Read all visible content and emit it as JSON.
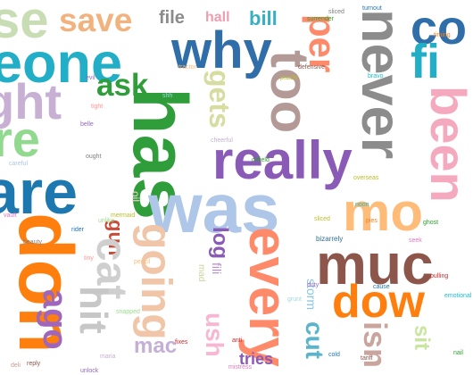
{
  "words": [
    {
      "text": "se",
      "color": "#c8ddb3"
    },
    {
      "text": "save",
      "color": "#f2b27e"
    },
    {
      "text": "why",
      "color": "#2f6ea8"
    },
    {
      "text": "file",
      "color": "#8b8b8b"
    },
    {
      "text": "hall",
      "color": "#ef9db0"
    },
    {
      "text": "bill",
      "color": "#38b0c1"
    },
    {
      "text": "co",
      "color": "#2f6ea8"
    },
    {
      "text": "eone",
      "color": "#22aec7"
    },
    {
      "text": "fi",
      "color": "#22aec7"
    },
    {
      "text": "never",
      "color": "#8c8c8c"
    },
    {
      "text": "per",
      "color": "#ff8a6a"
    },
    {
      "text": "ask",
      "color": "#2f9d3a"
    },
    {
      "text": "ght",
      "color": "#c7b0d3"
    },
    {
      "text": "too",
      "color": "#b39a97"
    },
    {
      "text": "gets",
      "color": "#d7dca0"
    },
    {
      "text": "has",
      "color": "#2f9d3a"
    },
    {
      "text": "been",
      "color": "#f4a9bf"
    },
    {
      "text": "re",
      "color": "#91d98f"
    },
    {
      "text": "really",
      "color": "#8a5ab7"
    },
    {
      "text": "are",
      "color": "#1d78b0"
    },
    {
      "text": "was",
      "color": "#aec7e8"
    },
    {
      "text": "mo",
      "color": "#ffbb78"
    },
    {
      "text": "don",
      "color": "#ff7f0e"
    },
    {
      "text": "gun",
      "color": "#c94c3b"
    },
    {
      "text": "cat",
      "color": "#cfcfcf"
    },
    {
      "text": "going",
      "color": "#f0c5a8"
    },
    {
      "text": "log",
      "color": "#8a5ab7"
    },
    {
      "text": "every",
      "color": "#ff8a6a"
    },
    {
      "text": "muc",
      "color": "#8c564b"
    },
    {
      "text": "hit",
      "color": "#c7c7c7"
    },
    {
      "text": "dow",
      "color": "#ff7f0e"
    },
    {
      "text": "ago",
      "color": "#9e66bd"
    },
    {
      "text": "mac",
      "color": "#c5b0d5"
    },
    {
      "text": "ush",
      "color": "#f7b6d2"
    },
    {
      "text": "cut",
      "color": "#5ab4cc"
    },
    {
      "text": "isn",
      "color": "#c9a59e"
    },
    {
      "text": "tries",
      "color": "#8a5ab7"
    },
    {
      "text": "sit",
      "color": "#c8e6a0"
    },
    {
      "text": "storm",
      "color": "#88c6df"
    },
    {
      "text": "fili",
      "color": "#b78bd1"
    },
    {
      "text": "mad",
      "color": "#c9d39c"
    },
    {
      "text": "oil",
      "color": "#f2d3d3"
    },
    {
      "text": "bizarrely",
      "color": "#2f6ea8"
    },
    {
      "text": "turnout",
      "color": "#1f77b4"
    },
    {
      "text": "sliced",
      "color": "#7f7f7f"
    },
    {
      "text": "surrender",
      "color": "#2ca02c"
    },
    {
      "text": "overseas",
      "color": "#bcbd22"
    },
    {
      "text": "belle",
      "color": "#9467bd"
    },
    {
      "text": "tight",
      "color": "#ff9896"
    },
    {
      "text": "careful",
      "color": "#aec7e8"
    },
    {
      "text": "unlike",
      "color": "#98df8a"
    },
    {
      "text": "defensive",
      "color": "#8c564b"
    },
    {
      "text": "cheerful",
      "color": "#c5b0d5"
    },
    {
      "text": "tractor",
      "color": "#ffbb78"
    },
    {
      "text": "noon",
      "color": "#17becf"
    },
    {
      "text": "anti",
      "color": "#d62728"
    },
    {
      "text": "ought",
      "color": "#7f7f7f"
    },
    {
      "text": "shh",
      "color": "#9edae5"
    },
    {
      "text": "sliced",
      "color": "#bcbd22"
    },
    {
      "text": "pies",
      "color": "#ff7f0e"
    },
    {
      "text": "ghost",
      "color": "#2ca02c"
    },
    {
      "text": "mistress",
      "color": "#e377c2"
    },
    {
      "text": "reply",
      "color": "#8c564b"
    },
    {
      "text": "unlock",
      "color": "#9467bd"
    },
    {
      "text": "cause",
      "color": "#1f77b4"
    },
    {
      "text": "emotional",
      "color": "#17becf"
    },
    {
      "text": "pulling",
      "color": "#d62728"
    },
    {
      "text": "mermaid",
      "color": "#bcbd22"
    },
    {
      "text": "tiny",
      "color": "#ff9896"
    },
    {
      "text": "evil",
      "color": "#9467bd"
    },
    {
      "text": "deli",
      "color": "#c49c94"
    },
    {
      "text": "oilfield",
      "color": "#2ca02c"
    },
    {
      "text": "seek",
      "color": "#e377c2"
    },
    {
      "text": "beauty",
      "color": "#7f7f7f"
    },
    {
      "text": "puzzle",
      "color": "#bcbd22"
    },
    {
      "text": "bravo",
      "color": "#17becf"
    },
    {
      "text": "timing",
      "color": "#ff7f0e"
    },
    {
      "text": "rider",
      "color": "#1f77b4"
    },
    {
      "text": "snapped",
      "color": "#98df8a"
    },
    {
      "text": "fixes",
      "color": "#d62728"
    },
    {
      "text": "maria",
      "color": "#c5b0d5"
    },
    {
      "text": "tariff",
      "color": "#8c564b"
    },
    {
      "text": "grunt",
      "color": "#9edae5"
    },
    {
      "text": "cold",
      "color": "#1f77b4"
    },
    {
      "text": "pencil",
      "color": "#ffbb78"
    },
    {
      "text": "nail",
      "color": "#2ca02c"
    },
    {
      "text": "vault",
      "color": "#e377c2"
    },
    {
      "text": "duty",
      "color": "#9467bd"
    }
  ]
}
